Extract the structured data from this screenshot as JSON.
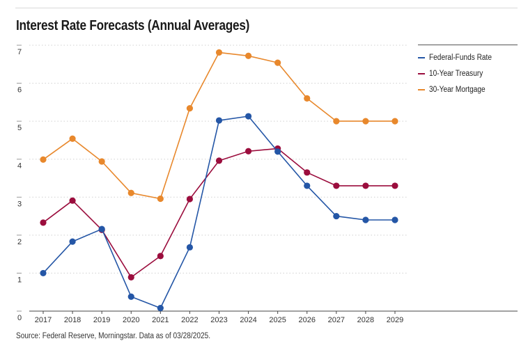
{
  "chart_data": {
    "type": "line",
    "title": "Interest Rate Forecasts (Annual Averages)",
    "categories": [
      "2017",
      "2018",
      "2019",
      "2020",
      "2021",
      "2022",
      "2023",
      "2024",
      "2025",
      "2026",
      "2027",
      "2028",
      "2029"
    ],
    "yticks": [
      0,
      1,
      2,
      3,
      4,
      5,
      6,
      7
    ],
    "ylim": [
      0,
      7
    ],
    "xlabel": "",
    "ylabel": "",
    "grid": true,
    "legend_position": "right",
    "series": [
      {
        "name": "Federal-Funds Rate",
        "color": "#2456a6",
        "values": [
          1.0,
          1.83,
          2.16,
          0.38,
          0.08,
          1.68,
          5.02,
          5.13,
          4.2,
          3.3,
          2.5,
          2.4,
          2.4
        ]
      },
      {
        "name": "10-Year Treasury",
        "color": "#9b0d3d",
        "values": [
          2.33,
          2.91,
          2.14,
          0.89,
          1.45,
          2.95,
          3.96,
          4.21,
          4.28,
          3.65,
          3.3,
          3.3,
          3.3
        ]
      },
      {
        "name": "30-Year Mortgage",
        "color": "#e8882c",
        "values": [
          3.99,
          4.54,
          3.94,
          3.11,
          2.96,
          5.34,
          6.81,
          6.72,
          6.54,
          5.6,
          5.0,
          5.0,
          5.0
        ]
      }
    ],
    "source": "Source: Federal Reserve, Morningstar. Data as of 03/28/2025."
  }
}
